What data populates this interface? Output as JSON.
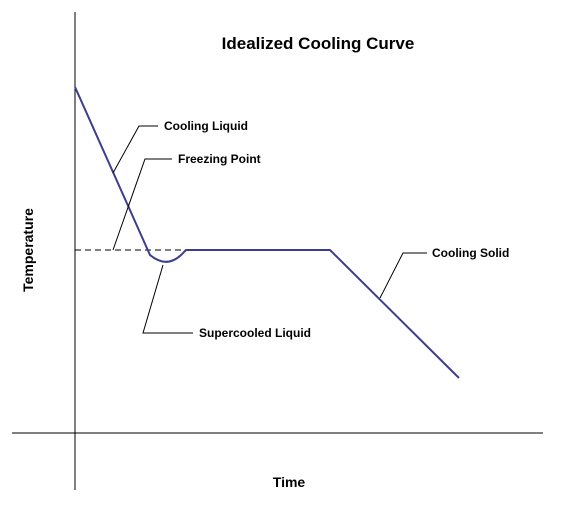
{
  "title": "Idealized Cooling Curve",
  "axes": {
    "x_label": "Time",
    "y_label": "Temperature"
  },
  "annotations": {
    "cooling_liquid": "Cooling Liquid",
    "freezing_point": "Freezing Point",
    "supercooled_liquid": "Supercooled Liquid",
    "cooling_solid": "Cooling Solid"
  },
  "colors": {
    "curve": "#3d3d8f",
    "axes": "#000000",
    "text": "#000000"
  }
}
